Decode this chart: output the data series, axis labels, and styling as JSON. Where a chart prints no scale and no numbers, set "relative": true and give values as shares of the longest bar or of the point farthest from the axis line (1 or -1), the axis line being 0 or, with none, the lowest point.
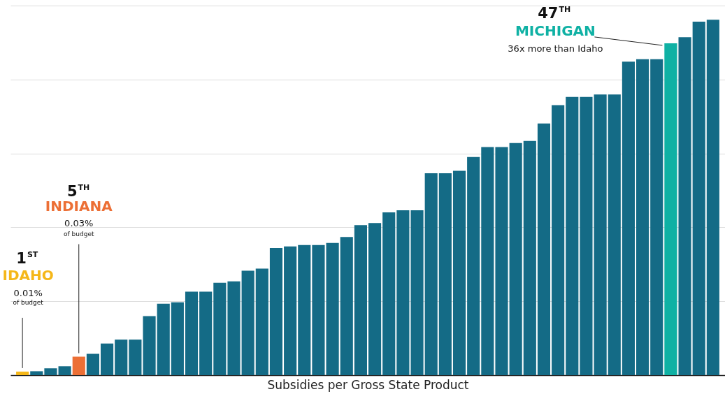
{
  "chart_data": {
    "type": "bar",
    "relative": true,
    "xlabel": "Subsidies per Gross State Product",
    "grid": "y",
    "categories": [
      null,
      null,
      null,
      null,
      null,
      null,
      null,
      null,
      null,
      null,
      null,
      null,
      null,
      null,
      null,
      null,
      null,
      null,
      null,
      null,
      null,
      null,
      null,
      null,
      null,
      null,
      null,
      null,
      null,
      null,
      null,
      null,
      null,
      null,
      null,
      null,
      null,
      null,
      null,
      null,
      null,
      null,
      null,
      null,
      null,
      null,
      null,
      null,
      null,
      null
    ],
    "values": [
      0.01,
      0.011,
      0.019,
      0.025,
      0.052,
      0.06,
      0.089,
      0.1,
      0.1,
      0.166,
      0.201,
      0.205,
      0.235,
      0.235,
      0.26,
      0.264,
      0.294,
      0.3,
      0.358,
      0.362,
      0.366,
      0.366,
      0.372,
      0.389,
      0.422,
      0.428,
      0.458,
      0.464,
      0.464,
      0.568,
      0.568,
      0.575,
      0.614,
      0.642,
      0.642,
      0.653,
      0.659,
      0.708,
      0.76,
      0.783,
      0.783,
      0.79,
      0.79,
      0.882,
      0.889,
      0.889,
      0.934,
      0.951,
      0.995,
      1
    ],
    "colors": [
      "#f5b719",
      "#146b86",
      "#146b86",
      "#146b86",
      "#ec6f35",
      "#146b86",
      "#146b86",
      "#146b86",
      "#146b86",
      "#146b86",
      "#146b86",
      "#146b86",
      "#146b86",
      "#146b86",
      "#146b86",
      "#146b86",
      "#146b86",
      "#146b86",
      "#146b86",
      "#146b86",
      "#146b86",
      "#146b86",
      "#146b86",
      "#146b86",
      "#146b86",
      "#146b86",
      "#146b86",
      "#146b86",
      "#146b86",
      "#146b86",
      "#146b86",
      "#146b86",
      "#146b86",
      "#146b86",
      "#146b86",
      "#146b86",
      "#146b86",
      "#146b86",
      "#146b86",
      "#146b86",
      "#146b86",
      "#146b86",
      "#146b86",
      "#146b86",
      "#146b86",
      "#146b86",
      "#0fb1a4",
      "#146b86",
      "#146b86",
      "#146b86"
    ],
    "annotations": [
      "1$^{ST}$",
      "IDAHO",
      "0.01%",
      "of budget",
      "5$^{TH}$",
      "INDIANA",
      "0.03%",
      "of budget",
      "47$^{TH}$",
      "MICHIGAN",
      "36x more than Idaho"
    ]
  }
}
